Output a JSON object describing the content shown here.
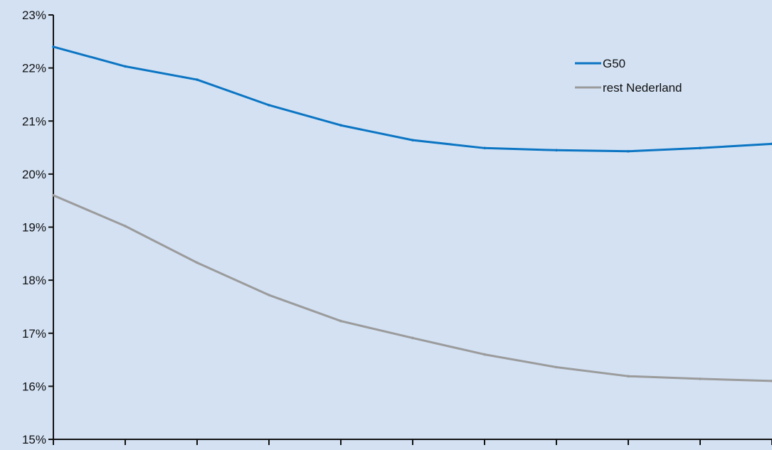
{
  "chart_data": {
    "type": "line",
    "title": "",
    "xlabel": "",
    "ylabel": "",
    "ylim": [
      15,
      23
    ],
    "yticks": [
      "15%",
      "16%",
      "17%",
      "18%",
      "19%",
      "20%",
      "21%",
      "22%",
      "23%"
    ],
    "x": [
      1,
      2,
      3,
      4,
      5,
      6,
      7,
      8,
      9,
      10,
      11
    ],
    "grid": false,
    "legend_position": "top-right",
    "series": [
      {
        "name": "G50",
        "color": "#0b75c3",
        "values": [
          22.4,
          22.03,
          21.78,
          21.3,
          20.92,
          20.64,
          20.49,
          20.45,
          20.43,
          20.49,
          20.57
        ]
      },
      {
        "name": "rest Nederland",
        "color": "#9b9b9b",
        "values": [
          19.6,
          19.02,
          18.33,
          17.72,
          17.23,
          16.91,
          16.6,
          16.36,
          16.19,
          16.14,
          16.1
        ]
      }
    ],
    "background_color": "#d3e1f3",
    "axis_color": "#111111"
  }
}
